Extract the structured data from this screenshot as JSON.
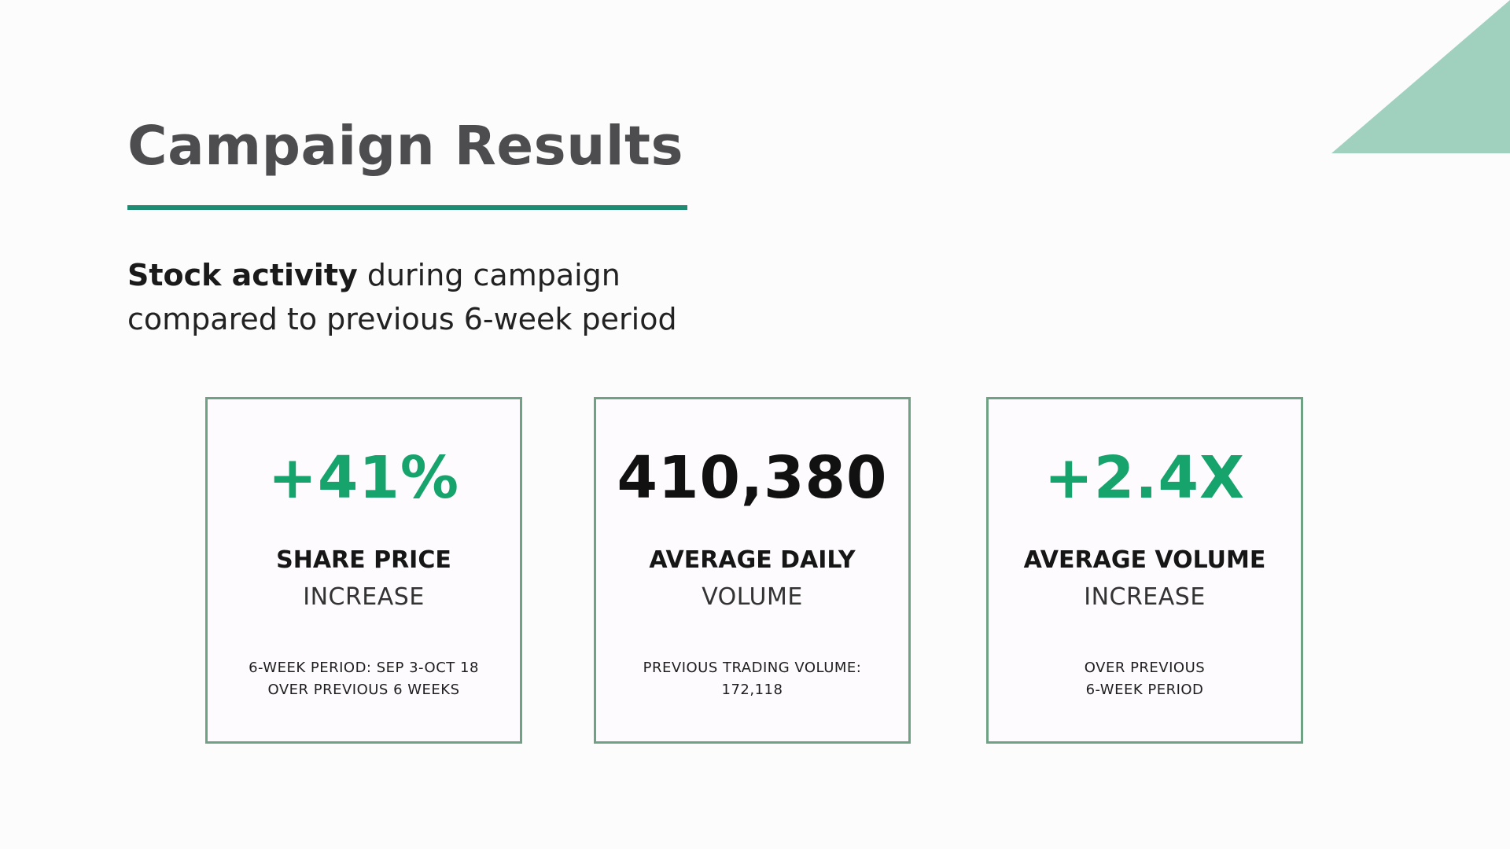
{
  "slide": {
    "title": "Campaign Results",
    "subtitle": {
      "bold": "Stock activity",
      "rest_line1": " during campaign",
      "line2": "compared to previous 6-week period"
    },
    "accent_color": "#1e8c72",
    "triangle_color": "#9fd1be"
  },
  "cards": [
    {
      "metric": "+41%",
      "metric_color": "#17a46c",
      "label_bold": "SHARE PRICE",
      "label_light": "INCREASE",
      "note_line1": "6-WEEK PERIOD: SEP 3-OCT 18",
      "note_line2": "OVER PREVIOUS 6 WEEKS"
    },
    {
      "metric": "410,380",
      "metric_color": "#111111",
      "label_bold": "AVERAGE DAILY",
      "label_light": "VOLUME",
      "note_line1": "PREVIOUS TRADING VOLUME:",
      "note_line2": "172,118"
    },
    {
      "metric": "+2.4X",
      "metric_color": "#17a46c",
      "label_bold": "AVERAGE VOLUME",
      "label_light": "INCREASE",
      "note_line1": "OVER PREVIOUS",
      "note_line2": "6-WEEK PERIOD"
    }
  ]
}
